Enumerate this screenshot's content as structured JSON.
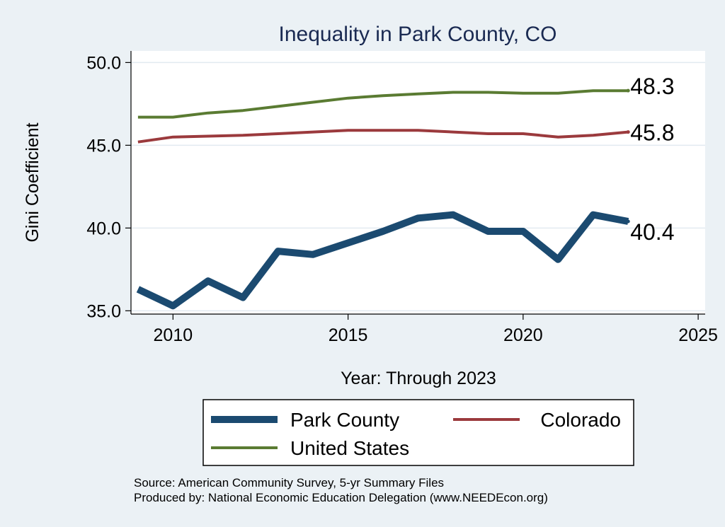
{
  "chart_data": {
    "type": "line",
    "title": "Inequality in Park County, CO",
    "xlabel": "Year: Through 2023",
    "ylabel": "Gini Coefficient",
    "xlim": [
      2008.8,
      2025.2
    ],
    "ylim": [
      34.8,
      50.7
    ],
    "xticks": [
      2010,
      2015,
      2020,
      2025
    ],
    "yticks": [
      "35.0",
      "40.0",
      "45.0",
      "50.0"
    ],
    "x": [
      2009,
      2010,
      2011,
      2012,
      2013,
      2014,
      2015,
      2016,
      2017,
      2018,
      2019,
      2020,
      2021,
      2022,
      2023
    ],
    "series": [
      {
        "name": "Park County",
        "color": "#1b4a70",
        "width": 10,
        "values": [
          36.3,
          35.3,
          36.8,
          35.8,
          38.6,
          38.4,
          39.1,
          39.8,
          40.6,
          40.8,
          39.8,
          39.8,
          38.1,
          40.8,
          40.4
        ],
        "end_label": "40.4"
      },
      {
        "name": "Colorado",
        "color": "#9b3a3d",
        "width": 4,
        "values": [
          45.2,
          45.5,
          45.55,
          45.6,
          45.7,
          45.8,
          45.9,
          45.9,
          45.9,
          45.8,
          45.7,
          45.7,
          45.5,
          45.6,
          45.8
        ],
        "end_label": "45.8"
      },
      {
        "name": "United States",
        "color": "#5a7b32",
        "width": 4,
        "values": [
          46.7,
          46.7,
          46.95,
          47.1,
          47.35,
          47.6,
          47.85,
          48.0,
          48.1,
          48.2,
          48.2,
          48.15,
          48.15,
          48.3,
          48.3
        ],
        "end_label": "48.3"
      }
    ],
    "grid": true,
    "legend_position": "bottom",
    "colors": {
      "background": "#ebf1f5",
      "plot_background": "#ffffff",
      "title": "#1a2a52",
      "grid": "#e2eaf0",
      "axis": "#000000"
    }
  },
  "source_note": "Source: American Community Survey, 5-yr Summary Files",
  "producer_note": "Produced by: National Economic Education Delegation (www.NEEDEcon.org)"
}
